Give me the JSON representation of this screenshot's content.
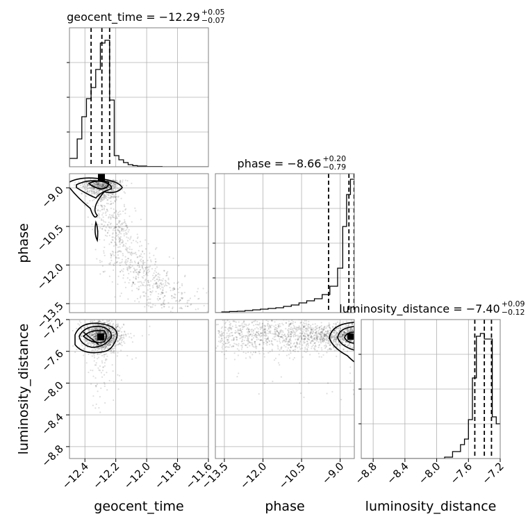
{
  "chart_data": {
    "type": "corner",
    "parameters": [
      "geocent_time",
      "phase",
      "luminosity_distance"
    ],
    "ranges": {
      "geocent_time": [
        -12.5,
        -11.6
      ],
      "phase": [
        -13.85,
        -8.45
      ],
      "luminosity_distance": [
        -8.95,
        -7.2
      ]
    },
    "ticks": {
      "geocent_time": [
        -12.4,
        -12.2,
        -12.0,
        -11.8,
        -11.6
      ],
      "phase": [
        -13.5,
        -12.0,
        -10.5,
        -9.0
      ],
      "luminosity_distance": [
        -8.8,
        -8.4,
        -8.0,
        -7.6,
        -7.2
      ]
    },
    "tick_labels": {
      "geocent_time": [
        "−12.4",
        "−12.2",
        "−12.0",
        "−11.8",
        "−11.6"
      ],
      "phase": [
        "−13.5",
        "−12.0",
        "−10.5",
        "−9.0"
      ],
      "luminosity_distance": [
        "−8.8",
        "−8.4",
        "−8.0",
        "−7.6",
        "−7.2"
      ]
    },
    "titles": [
      {
        "param": "geocent_time",
        "label": "geocent_time = −12.29",
        "plus": "+0.05",
        "minus": "−0.07"
      },
      {
        "param": "phase",
        "label": "phase = −8.66",
        "plus": "+0.20",
        "minus": "−0.79"
      },
      {
        "param": "luminosity_distance",
        "label": "luminosity_distance = −7.40",
        "plus": "+0.09",
        "minus": "−0.12"
      }
    ],
    "quantiles": {
      "geocent_time": [
        -12.36,
        -12.29,
        -12.24
      ],
      "phase": [
        -9.45,
        -8.66,
        -8.46
      ],
      "luminosity_distance": [
        -7.52,
        -7.4,
        -7.31
      ]
    },
    "histograms": {
      "geocent_time": {
        "edges": [
          -12.5,
          -12.45,
          -12.42,
          -12.39,
          -12.36,
          -12.33,
          -12.3,
          -12.27,
          -12.24,
          -12.21,
          -12.18,
          -12.15,
          -12.12,
          -12.09,
          -12.06,
          -12.0,
          -11.9,
          -11.6
        ],
        "counts": [
          0.06,
          0.2,
          0.36,
          0.49,
          0.57,
          0.7,
          0.89,
          0.91,
          0.48,
          0.08,
          0.05,
          0.03,
          0.015,
          0.008,
          0.005,
          0.002,
          0.0
        ]
      },
      "phase": {
        "edges": [
          -13.85,
          -13.6,
          -13.3,
          -13.0,
          -12.7,
          -12.4,
          -12.1,
          -11.8,
          -11.5,
          -11.2,
          -10.9,
          -10.6,
          -10.3,
          -10.0,
          -9.7,
          -9.4,
          -9.1,
          -8.9,
          -8.75,
          -8.6,
          -8.45
        ],
        "counts": [
          0.0,
          0.005,
          0.008,
          0.01,
          0.015,
          0.02,
          0.025,
          0.03,
          0.035,
          0.045,
          0.055,
          0.07,
          0.085,
          0.1,
          0.13,
          0.19,
          0.32,
          0.62,
          0.85,
          0.96
        ]
      },
      "luminosity_distance": {
        "edges": [
          -8.95,
          -7.9,
          -7.8,
          -7.7,
          -7.65,
          -7.6,
          -7.55,
          -7.5,
          -7.45,
          -7.4,
          -7.35,
          -7.3,
          -7.25,
          -7.2
        ],
        "counts": [
          0.0,
          0.01,
          0.05,
          0.1,
          0.14,
          0.28,
          0.58,
          0.88,
          0.9,
          0.86,
          0.86,
          0.3,
          0.25
        ]
      }
    },
    "grid": true
  }
}
